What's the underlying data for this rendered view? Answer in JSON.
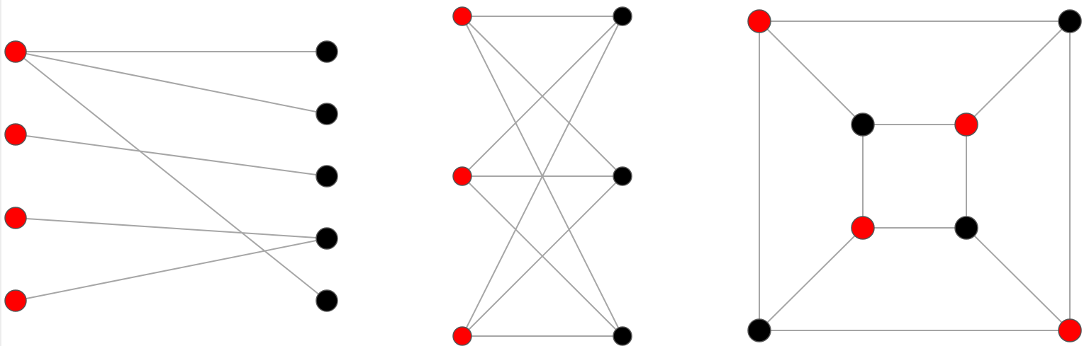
{
  "colors": {
    "part_a": "#ff0000",
    "part_b": "#000000",
    "edge": "#a6a6a6",
    "node_stroke": "#555555"
  },
  "graphs": [
    {
      "id": "bipartite-matching-graph",
      "part_a": [
        "a1",
        "a2",
        "a3",
        "a4"
      ],
      "part_b": [
        "b1",
        "b2",
        "b3",
        "b4",
        "b5"
      ],
      "edges": [
        [
          "a1",
          "b1"
        ],
        [
          "a1",
          "b2"
        ],
        [
          "a1",
          "b5"
        ],
        [
          "a2",
          "b3"
        ],
        [
          "a3",
          "b4"
        ],
        [
          "a4",
          "b4"
        ]
      ]
    },
    {
      "id": "complete-bipartite-k33",
      "part_a": [
        "a1",
        "a2",
        "a3"
      ],
      "part_b": [
        "b1",
        "b2",
        "b3"
      ],
      "edges": [
        [
          "a1",
          "b1"
        ],
        [
          "a1",
          "b2"
        ],
        [
          "a1",
          "b3"
        ],
        [
          "a2",
          "b1"
        ],
        [
          "a2",
          "b2"
        ],
        [
          "a2",
          "b3"
        ],
        [
          "a3",
          "b1"
        ],
        [
          "a3",
          "b2"
        ],
        [
          "a3",
          "b3"
        ]
      ]
    },
    {
      "id": "cube-graph",
      "part_a": [
        "o_tl",
        "o_br",
        "i_tr",
        "i_bl"
      ],
      "part_b": [
        "o_tr",
        "o_bl",
        "i_tl",
        "i_br"
      ],
      "edges": [
        [
          "o_tl",
          "o_tr"
        ],
        [
          "o_bl",
          "o_br"
        ],
        [
          "o_tl",
          "o_bl"
        ],
        [
          "o_tr",
          "o_br"
        ],
        [
          "i_tl",
          "i_tr"
        ],
        [
          "i_bl",
          "i_br"
        ],
        [
          "i_tl",
          "i_bl"
        ],
        [
          "i_tr",
          "i_br"
        ],
        [
          "o_tl",
          "i_tl"
        ],
        [
          "o_tr",
          "i_tr"
        ],
        [
          "o_bl",
          "i_bl"
        ],
        [
          "o_br",
          "i_br"
        ]
      ]
    }
  ]
}
